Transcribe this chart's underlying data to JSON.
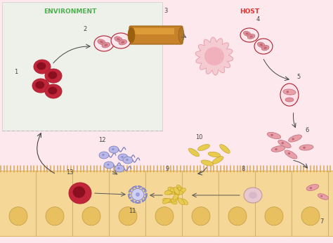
{
  "env_bg_color": "#eef0ea",
  "host_bg_color": "#fce8ed",
  "env_label": "ENVIRONMENT",
  "host_label": "HOST",
  "env_label_color": "#4caf50",
  "host_label_color": "#e53030",
  "number_color": "#444444",
  "dashed_line_color": "#bbbbbb",
  "intestine_fill": "#f5d898",
  "intestine_border": "#d9a84e",
  "oocyst_dark_fill": "#c0253a",
  "oocyst_dark_inner": "#8a1020",
  "oocyst_border": "#b02030",
  "arrow_color": "#333333",
  "tube_color": "#c8832a",
  "tube_highlight": "#e8a840",
  "tube_dark": "#9a6010",
  "spiky_fill": "#f5c8d0",
  "spiky_border": "#e090a0",
  "sporozoite_pink": "#e8a0a8",
  "sporozoite_border": "#c06878",
  "micro_fill": "#b8b8e8",
  "micro_border": "#7878b8",
  "yellow_fill": "#e8cc50",
  "yellow_border": "#c09820",
  "macrogam_fill": "#e8c0c8",
  "macrogam_border": "#c08090",
  "villi_color": "#d9a84e"
}
